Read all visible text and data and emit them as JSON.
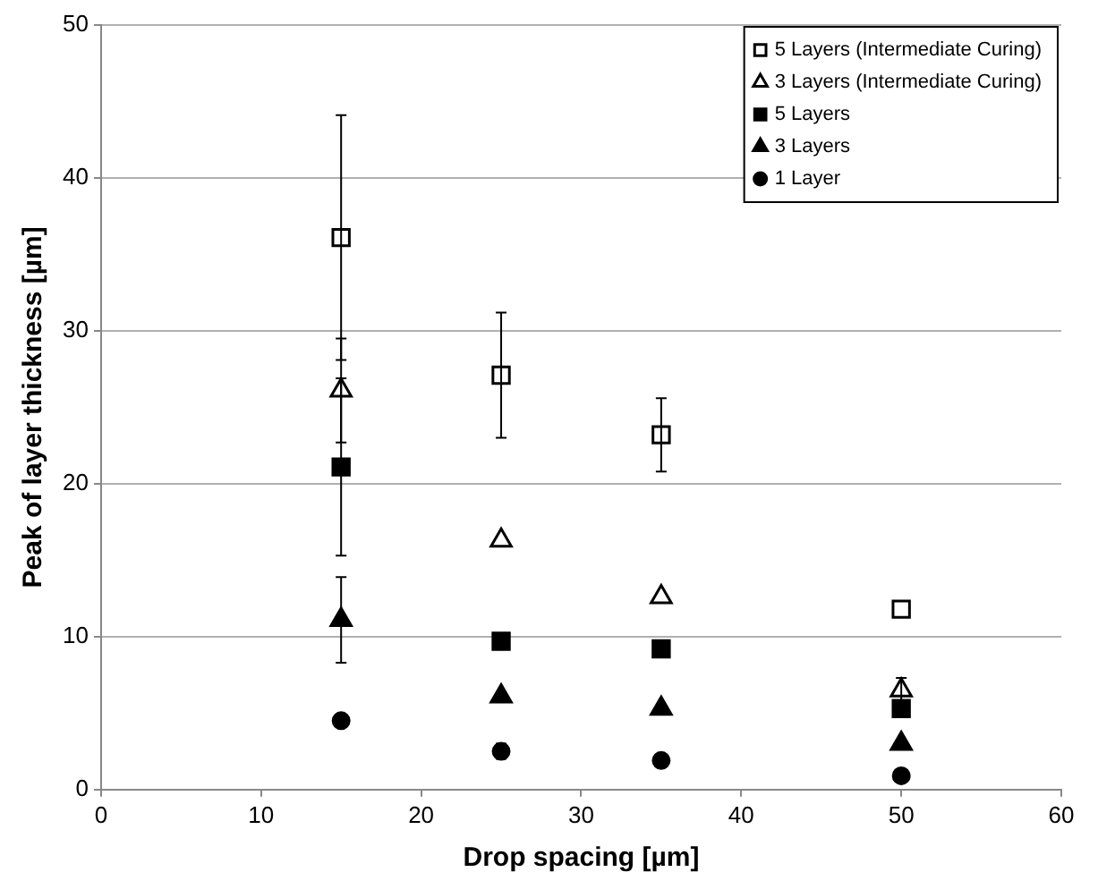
{
  "chart_data": {
    "type": "scatter",
    "xlabel": "Drop spacing [µm]",
    "ylabel": "Peak of layer thickness [µm]",
    "x": [
      15,
      25,
      35,
      50
    ],
    "xlim": [
      0,
      60
    ],
    "xticks": [
      0,
      10,
      20,
      30,
      40,
      50,
      60
    ],
    "ylim": [
      0,
      50
    ],
    "yticks": [
      0,
      10,
      20,
      30,
      40,
      50
    ],
    "grid": "y",
    "legend": "top right",
    "series": [
      {
        "name": "5 Layers (Intermediate Curing)",
        "color": "#ffffff",
        "marker": "square",
        "values": [
          36.1,
          27.1,
          23.2,
          11.8
        ],
        "errors": [
          8,
          4.1,
          2.4,
          null
        ]
      },
      {
        "name": "3 Layers (Intermediate Curing)",
        "color": "#ffffff",
        "marker": "triangle",
        "values": [
          26.1,
          16.3,
          12.6,
          6.5
        ],
        "errors": [
          3.4,
          null,
          null,
          0.8
        ]
      },
      {
        "name": "5 Layers",
        "color": "#000000",
        "marker": "square",
        "values": [
          21.1,
          9.7,
          9.2,
          5.3
        ],
        "errors": [
          5.8,
          null,
          null,
          null
        ]
      },
      {
        "name": "3 Layers",
        "color": "#000000",
        "marker": "triangle",
        "values": [
          11.1,
          6.1,
          5.3,
          3.0
        ],
        "errors": [
          2.8,
          null,
          null,
          null
        ]
      },
      {
        "name": "1 Layer",
        "color": "#000000",
        "marker": "circle",
        "values": [
          4.5,
          2.5,
          1.9,
          0.9
        ],
        "errors": [
          null,
          0.5,
          null,
          null
        ]
      }
    ]
  }
}
